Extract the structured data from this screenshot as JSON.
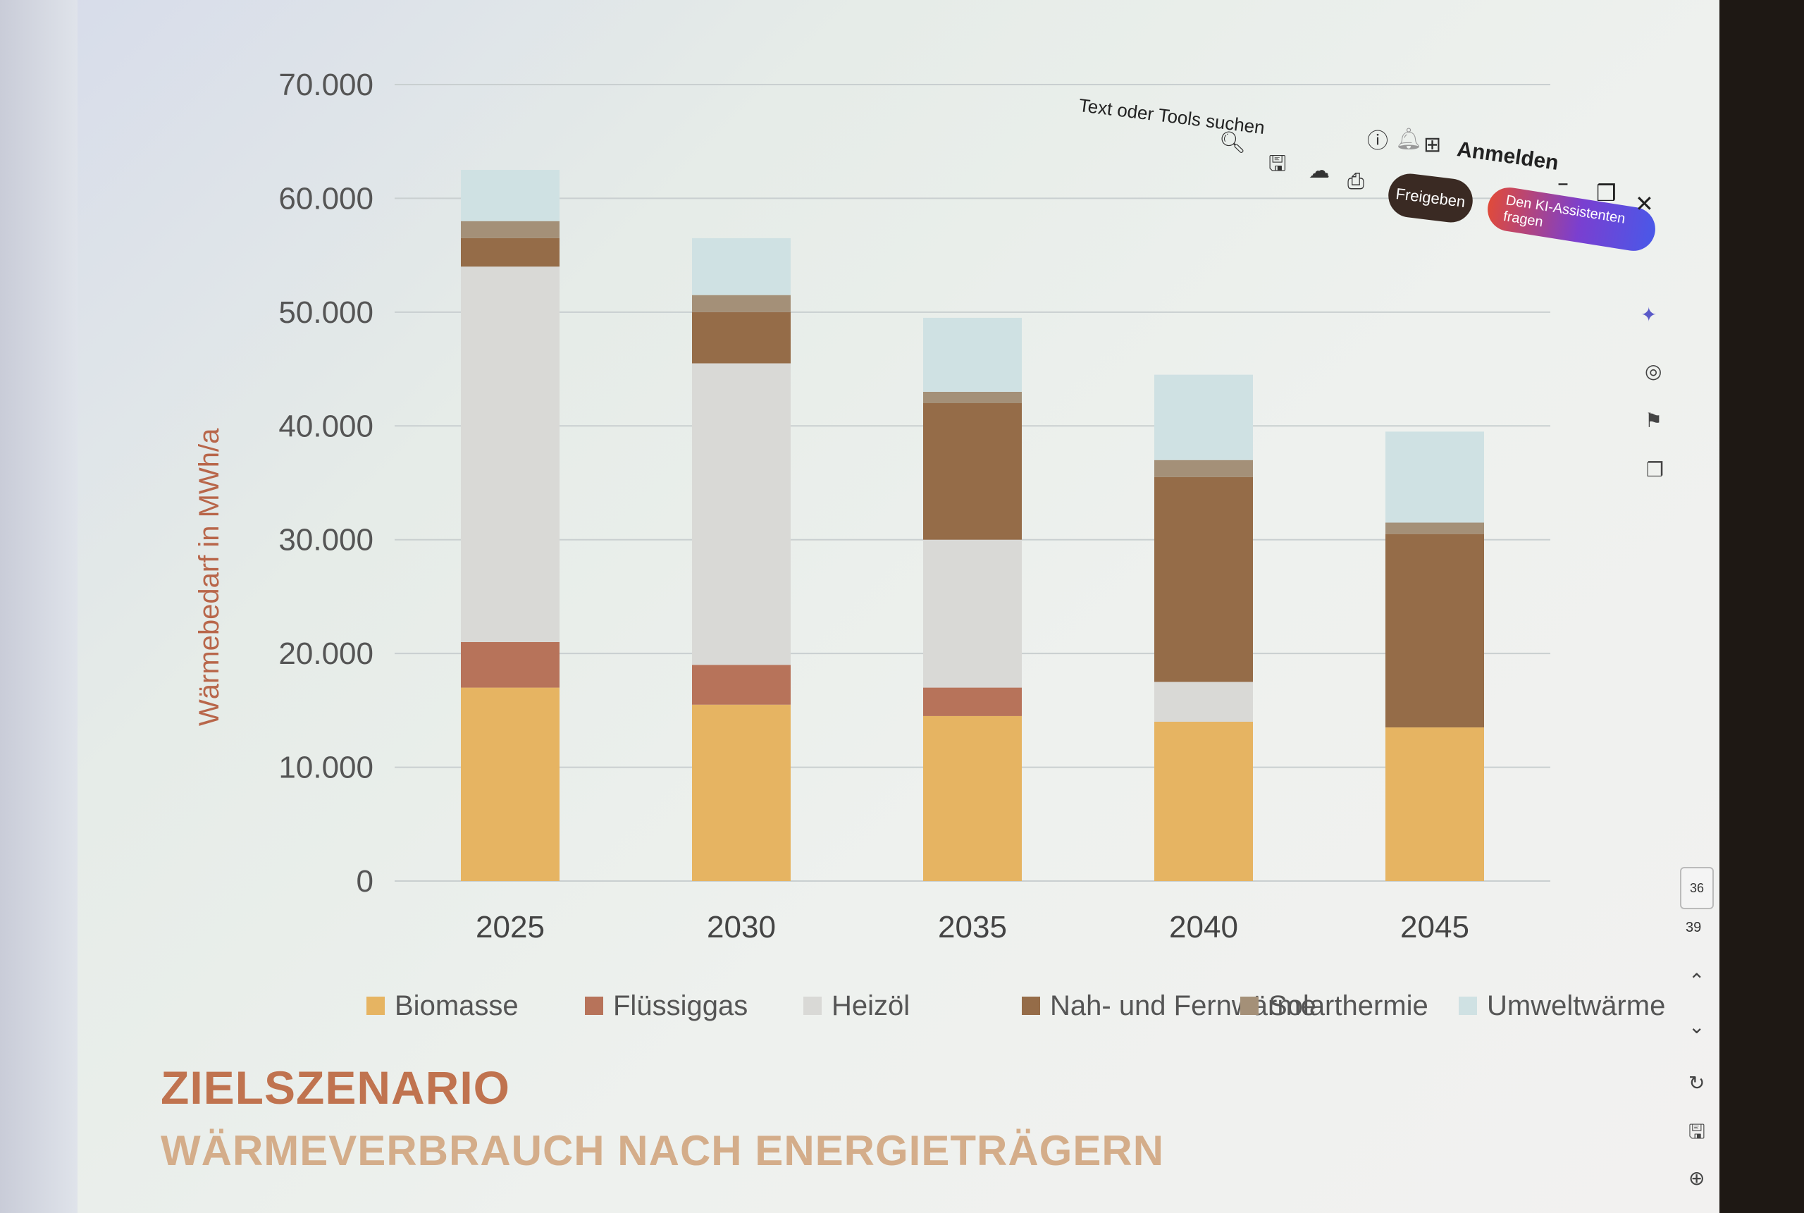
{
  "chart_data": {
    "type": "bar",
    "stacked": true,
    "categories": [
      "2025",
      "2030",
      "2035",
      "2040",
      "2045"
    ],
    "ylabel": "Wärmebedarf in MWh/a",
    "ylim": [
      0,
      70000
    ],
    "yticks": [
      0,
      10000,
      20000,
      30000,
      40000,
      50000,
      60000,
      70000
    ],
    "ytick_labels": [
      "0",
      "10.000",
      "20.000",
      "30.000",
      "40.000",
      "50.000",
      "60.000",
      "70.000"
    ],
    "grid": true,
    "legend_position": "bottom",
    "series": [
      {
        "name": "Biomasse",
        "color": "#e6b462",
        "values": [
          17000,
          15500,
          14500,
          14000,
          13500
        ]
      },
      {
        "name": "Flüssiggas",
        "color": "#b7735a",
        "values": [
          4000,
          3500,
          2500,
          0,
          0
        ]
      },
      {
        "name": "Heizöl",
        "color": "#d9d9d6",
        "values": [
          33000,
          26500,
          13000,
          3500,
          0
        ]
      },
      {
        "name": "Nah- und Fernwärme",
        "color": "#956c48",
        "values": [
          2500,
          4500,
          12000,
          18000,
          17000
        ]
      },
      {
        "name": "Solarthermie",
        "color": "#a49078",
        "values": [
          1500,
          1500,
          1000,
          1500,
          1000
        ]
      },
      {
        "name": "Umweltwärme",
        "color": "#cfe1e3",
        "values": [
          4500,
          5000,
          6500,
          7500,
          8000
        ]
      }
    ]
  },
  "slide": {
    "title": "ZIELSZENARIO",
    "subtitle": "WÄRMEVERBRAUCH NACH ENERGIETRÄGERN"
  },
  "viewer": {
    "search_text": "Text oder Tools suchen",
    "signin_label": "Anmelden",
    "share_label": "Freigeben",
    "ai_label": "Den KI-Assistenten fragen",
    "page_current": "36",
    "page_total": "39",
    "icons": [
      "search-icon",
      "save-icon",
      "upload-icon",
      "print-icon",
      "help-icon",
      "bell-icon",
      "apps-icon",
      "minimize-icon",
      "maximize-icon",
      "close-icon"
    ]
  }
}
